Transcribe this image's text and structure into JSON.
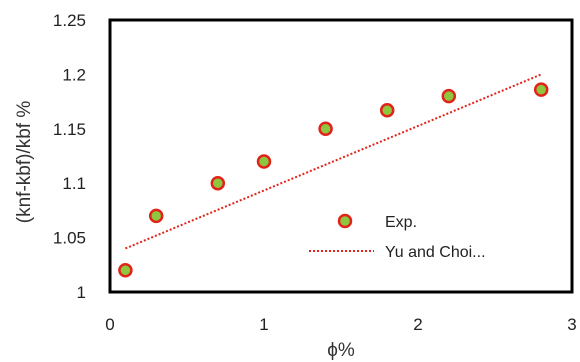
{
  "chart_data": {
    "type": "scatter",
    "title": "",
    "xlabel": "ϕ%",
    "ylabel": "(knf-kbf)/kbf %",
    "xlim": [
      0,
      3
    ],
    "ylim": [
      1,
      1.25
    ],
    "x_ticks": [
      "0",
      "1",
      "2",
      "3"
    ],
    "y_ticks": [
      "1",
      "1.05",
      "1.1",
      "1.15",
      "1.2",
      "1.25"
    ],
    "grid": false,
    "legend_position": "right-center",
    "series": [
      {
        "name": "Exp.",
        "kind": "markers",
        "marker_fill": "#8dc63f",
        "marker_edge": "#e2231a",
        "points": [
          {
            "x": 0.1,
            "y": 1.02
          },
          {
            "x": 0.3,
            "y": 1.07
          },
          {
            "x": 0.7,
            "y": 1.1
          },
          {
            "x": 1.0,
            "y": 1.12
          },
          {
            "x": 1.4,
            "y": 1.15
          },
          {
            "x": 1.8,
            "y": 1.167
          },
          {
            "x": 2.2,
            "y": 1.18
          },
          {
            "x": 2.8,
            "y": 1.186
          }
        ]
      },
      {
        "name": "Yu and Choi...",
        "kind": "dotted-line",
        "color": "#e2231a",
        "points": [
          {
            "x": 0.1,
            "y": 1.04
          },
          {
            "x": 2.8,
            "y": 1.2
          }
        ]
      }
    ]
  }
}
